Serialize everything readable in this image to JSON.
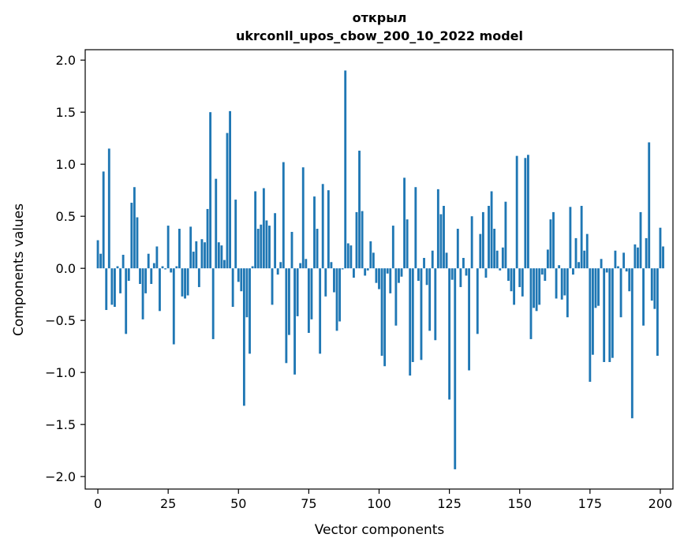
{
  "chart_data": {
    "type": "bar",
    "title_line1": "открыл",
    "title_line2": "ukrconll_upos_cbow_200_10_2022 model",
    "xlabel": "Vector components",
    "ylabel": "Components values",
    "xlim": [
      -4.5,
      204.5
    ],
    "ylim": [
      -2.12,
      2.1
    ],
    "x_ticks": [
      {
        "value": 0,
        "label": "0"
      },
      {
        "value": 25,
        "label": "25"
      },
      {
        "value": 50,
        "label": "50"
      },
      {
        "value": 75,
        "label": "75"
      },
      {
        "value": 100,
        "label": "100"
      },
      {
        "value": 125,
        "label": "125"
      },
      {
        "value": 150,
        "label": "150"
      },
      {
        "value": 175,
        "label": "175"
      },
      {
        "value": 200,
        "label": "200"
      }
    ],
    "y_ticks": [
      {
        "value": 2.0,
        "label": "2.0"
      },
      {
        "value": 1.5,
        "label": "1.5"
      },
      {
        "value": 1.0,
        "label": "1.0"
      },
      {
        "value": 0.5,
        "label": "0.5"
      },
      {
        "value": 0.0,
        "label": "0.0"
      },
      {
        "value": -0.5,
        "label": "−0.5"
      },
      {
        "value": -1.0,
        "label": "−1.0"
      },
      {
        "value": -1.5,
        "label": "−1.5"
      },
      {
        "value": -2.0,
        "label": "−2.0"
      }
    ],
    "bar_color": "#1f77b4",
    "grid": false,
    "values": [
      0.27,
      0.14,
      0.93,
      -0.4,
      1.15,
      -0.35,
      -0.37,
      0.02,
      -0.24,
      0.13,
      -0.63,
      -0.12,
      0.63,
      0.78,
      0.49,
      -0.15,
      -0.49,
      -0.24,
      0.14,
      -0.15,
      0.05,
      0.21,
      -0.41,
      0.02,
      -0.01,
      0.41,
      -0.04,
      -0.73,
      0.02,
      0.38,
      -0.27,
      -0.29,
      -0.26,
      0.4,
      0.16,
      0.26,
      -0.18,
      0.28,
      0.25,
      0.57,
      1.5,
      -0.68,
      0.86,
      0.25,
      0.22,
      0.08,
      1.3,
      1.51,
      -0.37,
      0.66,
      -0.13,
      -0.22,
      -1.32,
      -0.47,
      -0.82,
      0.02,
      0.74,
      0.38,
      0.42,
      0.77,
      0.46,
      0.41,
      -0.35,
      0.53,
      -0.06,
      0.06,
      1.02,
      -0.91,
      -0.64,
      0.35,
      -1.02,
      -0.46,
      0.05,
      0.97,
      0.09,
      -0.62,
      -0.49,
      0.69,
      0.38,
      -0.82,
      0.81,
      -0.27,
      0.75,
      0.06,
      -0.23,
      -0.6,
      -0.51,
      -0.01,
      1.9,
      0.24,
      0.22,
      -0.09,
      0.54,
      1.13,
      0.55,
      -0.07,
      -0.02,
      0.26,
      0.15,
      -0.14,
      -0.2,
      -0.84,
      -0.94,
      -0.05,
      -0.24,
      0.41,
      -0.55,
      -0.14,
      -0.08,
      0.87,
      0.47,
      -1.03,
      -0.9,
      0.78,
      -0.12,
      -0.88,
      0.1,
      -0.16,
      -0.6,
      0.17,
      -0.69,
      0.76,
      0.52,
      0.6,
      0.15,
      -1.26,
      -0.11,
      -1.93,
      0.38,
      -0.18,
      0.1,
      -0.07,
      -0.98,
      0.5,
      0.0,
      -0.63,
      0.33,
      0.54,
      -0.09,
      0.6,
      0.74,
      0.38,
      0.17,
      -0.02,
      0.2,
      0.64,
      -0.12,
      -0.22,
      -0.35,
      1.08,
      -0.18,
      -0.27,
      1.06,
      1.09,
      -0.68,
      -0.38,
      -0.41,
      -0.35,
      -0.06,
      -0.12,
      0.18,
      0.47,
      0.54,
      -0.29,
      0.03,
      -0.3,
      -0.26,
      -0.47,
      0.59,
      -0.06,
      0.29,
      0.06,
      0.6,
      0.17,
      0.33,
      -1.09,
      -0.83,
      -0.38,
      -0.36,
      0.09,
      -0.9,
      -0.04,
      -0.9,
      -0.86,
      0.17,
      0.02,
      -0.47,
      0.15,
      -0.03,
      -0.22,
      -1.44,
      0.23,
      0.2,
      0.54,
      -0.55,
      0.29,
      1.21,
      -0.31,
      -0.39,
      -0.84,
      0.39,
      0.21
    ]
  }
}
